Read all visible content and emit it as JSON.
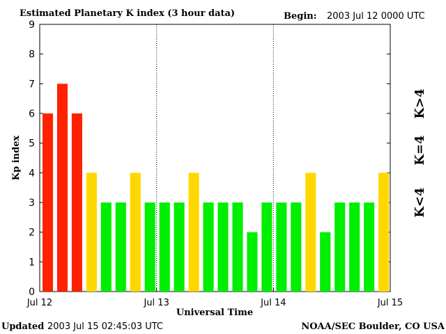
{
  "header": {
    "title": "Estimated Planetary K index (3 hour data)",
    "begin_label": "Begin:",
    "begin_value": "2003 Jul 12 0000 UTC"
  },
  "footer": {
    "updated_label": "Updated",
    "updated_value": "2003 Jul 15 02:45:03 UTC",
    "credit": "NOAA/SEC Boulder, CO USA"
  },
  "legend": {
    "high": "K>4",
    "equal": "K=4",
    "low": "K<4"
  },
  "colors": {
    "high": "#ff2200",
    "equal": "#ffd700",
    "low": "#00ee00"
  },
  "chart_data": {
    "type": "bar",
    "title": "Estimated Planetary K index (3 hour data)",
    "xlabel": "Universal Time",
    "ylabel": "Kp index",
    "ylim": [
      0,
      9
    ],
    "yticks": [
      "0",
      "1",
      "2",
      "3",
      "4",
      "5",
      "6",
      "7",
      "8",
      "9"
    ],
    "day_labels": [
      "Jul 12",
      "Jul 13",
      "Jul 14",
      "Jul 15"
    ],
    "bars_per_day": 8,
    "day_separators": "dotted",
    "values": [
      6,
      7,
      6,
      4,
      3,
      3,
      4,
      3,
      3,
      3,
      4,
      3,
      3,
      3,
      2,
      3,
      3,
      3,
      4,
      2,
      3,
      3,
      3,
      4
    ]
  }
}
